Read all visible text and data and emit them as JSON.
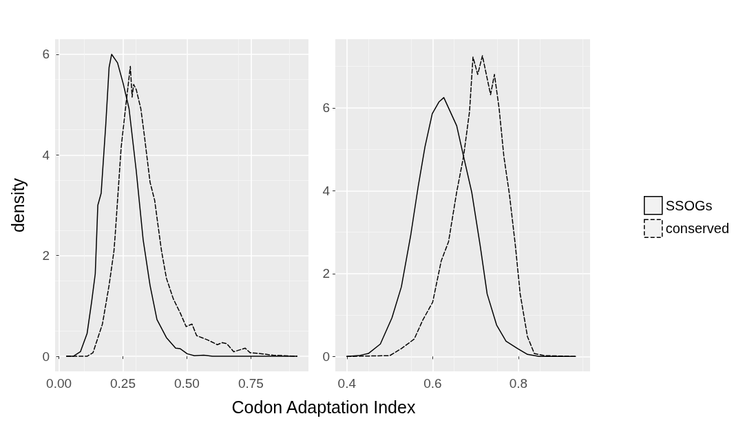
{
  "chart_data": [
    {
      "type": "line",
      "xlabel": "Codon Adaptation Index",
      "ylabel": "density",
      "xlim": [
        -0.015,
        0.975
      ],
      "ylim": [
        -0.3,
        6.3
      ],
      "xticks": [
        {
          "value": 0,
          "label": "0.00"
        },
        {
          "value": 0.25,
          "label": "0.25"
        },
        {
          "value": 0.5,
          "label": "0.50"
        },
        {
          "value": 0.75,
          "label": "0.75"
        }
      ],
      "yticks": [
        0,
        2,
        4,
        6
      ],
      "grid": true,
      "marker": "none",
      "series": [
        {
          "color": "#000000",
          "line_style": "solid",
          "x": [
            0.03,
            0.056,
            0.084,
            0.11,
            0.128,
            0.142,
            0.152,
            0.165,
            0.183,
            0.196,
            0.206,
            0.229,
            0.251,
            0.274,
            0.302,
            0.329,
            0.356,
            0.383,
            0.42,
            0.456,
            0.474,
            0.501,
            0.529,
            0.566,
            0.6,
            0.93
          ],
          "values": [
            0,
            0,
            0.09,
            0.45,
            1.09,
            1.64,
            3.0,
            3.24,
            4.6,
            5.74,
            6.0,
            5.83,
            5.42,
            4.92,
            3.69,
            2.32,
            1.41,
            0.73,
            0.37,
            0.16,
            0.15,
            0.05,
            0.01,
            0.02,
            0,
            0
          ]
        },
        {
          "color": "#000000",
          "line_style": "dashed",
          "x": [
            0.03,
            0.11,
            0.133,
            0.17,
            0.196,
            0.215,
            0.22,
            0.243,
            0.26,
            0.279,
            0.286,
            0.292,
            0.302,
            0.32,
            0.333,
            0.356,
            0.374,
            0.392,
            0.401,
            0.42,
            0.447,
            0.474,
            0.497,
            0.52,
            0.538,
            0.583,
            0.619,
            0.638,
            0.656,
            0.683,
            0.728,
            0.747,
            0.792,
            0.837,
            0.93
          ],
          "values": [
            0,
            0,
            0.07,
            0.64,
            1.41,
            2.09,
            2.42,
            4.14,
            4.92,
            5.76,
            5.15,
            5.4,
            5.3,
            4.92,
            4.42,
            3.46,
            3.1,
            2.42,
            2.09,
            1.55,
            1.14,
            0.86,
            0.59,
            0.64,
            0.41,
            0.32,
            0.23,
            0.27,
            0.25,
            0.09,
            0.16,
            0.07,
            0.05,
            0.02,
            0
          ]
        }
      ]
    },
    {
      "type": "line",
      "xlim": [
        0.373,
        0.967
      ],
      "ylim": [
        -0.36,
        7.66
      ],
      "xticks": [
        0.4,
        0.6,
        0.8
      ],
      "yticks": [
        0,
        2,
        4,
        6
      ],
      "grid": true,
      "marker": "none",
      "legend": "right",
      "series": [
        {
          "name": "SSOGs",
          "color": "#000000",
          "line_style": "solid",
          "x": [
            0.4,
            0.428,
            0.45,
            0.478,
            0.505,
            0.527,
            0.549,
            0.566,
            0.582,
            0.599,
            0.615,
            0.626,
            0.656,
            0.672,
            0.691,
            0.711,
            0.727,
            0.749,
            0.771,
            0.798,
            0.821,
            0.848,
            0.933
          ],
          "values": [
            0,
            0.02,
            0.07,
            0.3,
            0.93,
            1.68,
            2.94,
            4.09,
            5.06,
            5.86,
            6.15,
            6.25,
            5.57,
            4.83,
            3.97,
            2.66,
            1.51,
            0.76,
            0.37,
            0.19,
            0.05,
            0,
            0
          ]
        },
        {
          "name": "conserved",
          "color": "#000000",
          "line_style": "dashed",
          "x": [
            0.4,
            0.5,
            0.527,
            0.557,
            0.577,
            0.6,
            0.62,
            0.637,
            0.656,
            0.672,
            0.686,
            0.694,
            0.705,
            0.716,
            0.735,
            0.744,
            0.755,
            0.766,
            0.779,
            0.793,
            0.804,
            0.821,
            0.837,
            0.861,
            0.933
          ],
          "values": [
            0,
            0.02,
            0.19,
            0.42,
            0.88,
            1.31,
            2.31,
            2.77,
            3.97,
            4.83,
            5.92,
            7.23,
            6.81,
            7.26,
            6.32,
            6.81,
            5.98,
            4.83,
            3.91,
            2.66,
            1.51,
            0.48,
            0.07,
            0.02,
            0
          ]
        }
      ]
    }
  ]
}
